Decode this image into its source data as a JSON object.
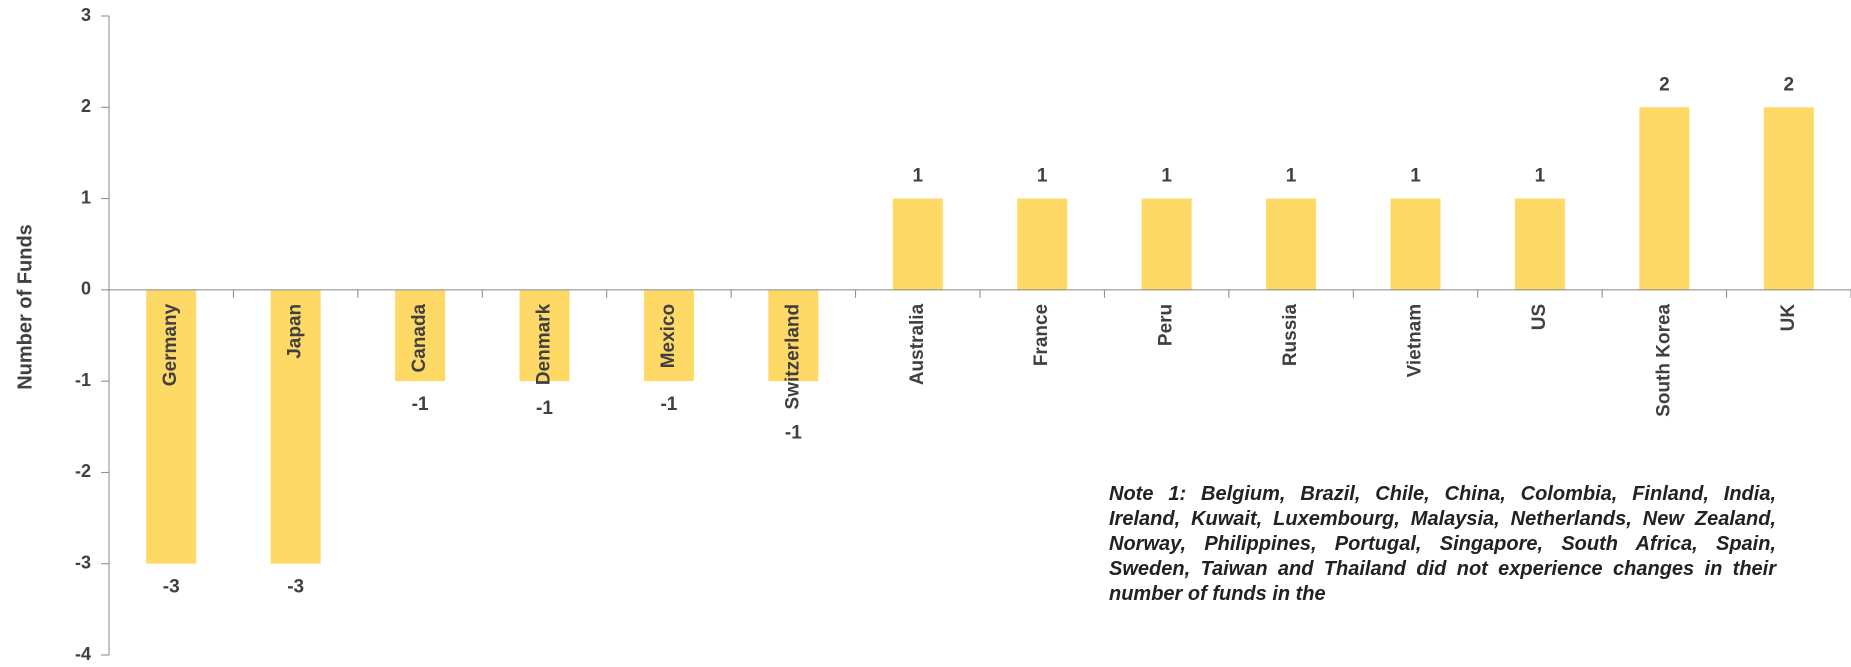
{
  "chart_data": {
    "type": "bar",
    "y_axis_label": "Number of Funds",
    "categories": [
      "Germany",
      "Japan",
      "Canada",
      "Denmark",
      "Mexico",
      "Switzerland",
      "Australia",
      "France",
      "Peru",
      "Russia",
      "Vietnam",
      "US",
      "South Korea",
      "UK"
    ],
    "values": [
      -3,
      -3,
      -1,
      -1,
      -1,
      -1,
      1,
      1,
      1,
      1,
      1,
      1,
      2,
      2
    ],
    "color": "#ffd966",
    "ylim": [
      -4,
      3
    ],
    "yticks": [
      -4,
      -3,
      -2,
      -1,
      0,
      1,
      2,
      3
    ],
    "grid": false,
    "note": "Note 1: Belgium, Brazil, Chile, China, Colombia, Finland, India, Ireland, Kuwait, Luxembourg, Malaysia, Netherlands, New Zealand, Norway, Philippines, Portugal, Singapore, South Africa, Spain, Sweden, Taiwan and Thailand did not experience changes in their number of funds in the"
  }
}
